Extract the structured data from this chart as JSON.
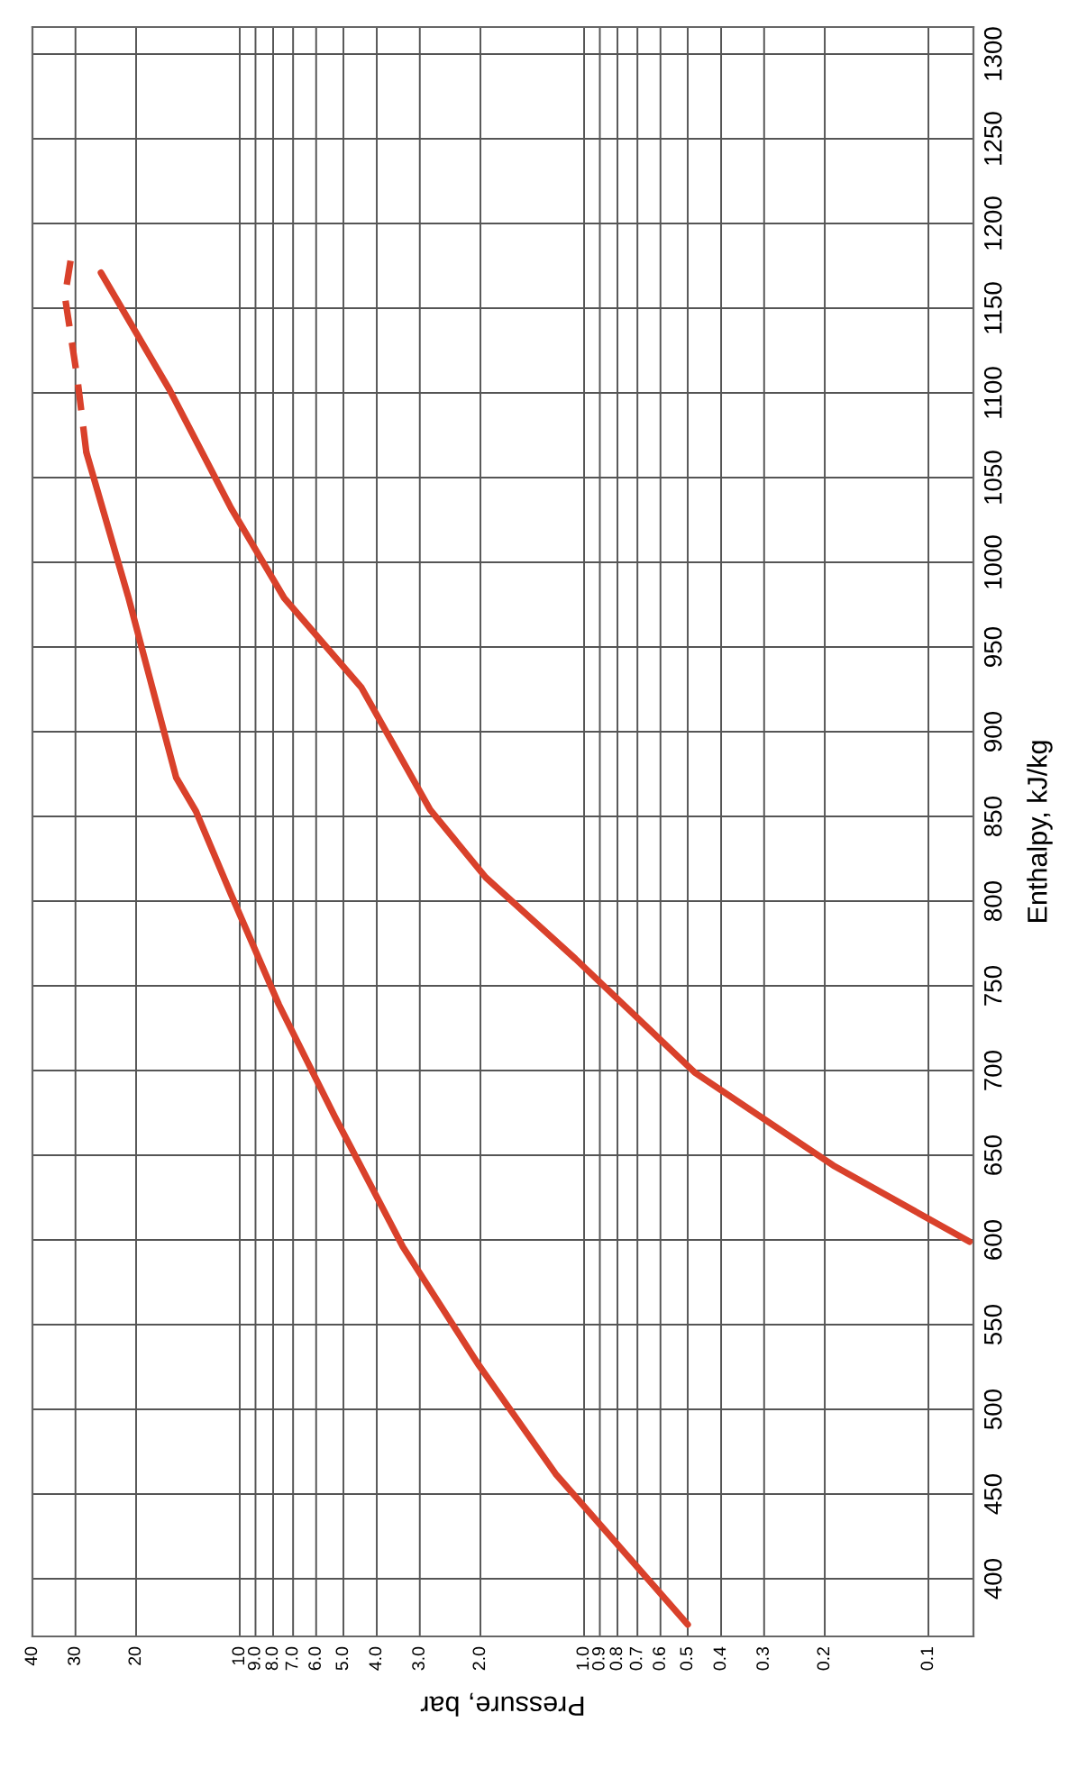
{
  "chart_data": {
    "type": "line",
    "xlabel": "Pressure, bar",
    "ylabel": "Enthalpy, kJ/kg",
    "log": "x",
    "grid": true,
    "marker": "none",
    "xlim": [
      40,
      0.074
    ],
    "ylim": [
      366,
      1316
    ],
    "xticks": [
      40,
      30,
      20,
      10,
      {
        "value": 9,
        "label": "9.0"
      },
      {
        "value": 8,
        "label": "8.0"
      },
      {
        "value": 7,
        "label": "7.0"
      },
      {
        "value": 6,
        "label": "6.0"
      },
      {
        "value": 5,
        "label": "5.0"
      },
      {
        "value": 4,
        "label": "4.0"
      },
      {
        "value": 3,
        "label": "3.0"
      },
      {
        "value": 2,
        "label": "2.0"
      },
      {
        "value": 1,
        "label": "1.0"
      },
      0.9,
      0.8,
      0.7,
      0.6,
      0.5,
      0.4,
      0.3,
      0.2,
      0.1
    ],
    "yticks": [
      400,
      450,
      500,
      550,
      600,
      650,
      700,
      750,
      800,
      850,
      900,
      950,
      1000,
      1050,
      1100,
      1150,
      1200,
      1250,
      1300
    ],
    "series": [
      {
        "color": "#d9412b",
        "line_style": "solid",
        "x": [
          0.5,
          1.21,
          2.02,
          3.36,
          5.3,
          7.7,
          10.6,
          13.4,
          15.3,
          21.1,
          27.9
        ],
        "values": [
          373,
          462,
          526,
          596,
          673,
          739,
          804,
          853,
          873,
          980,
          1065
        ]
      },
      {
        "color": "#d9412b",
        "line_style": "dashed",
        "x": [
          27.9,
          29.6,
          32.2,
          31.0
        ],
        "values": [
          1065,
          1108,
          1157,
          1178
        ]
      },
      {
        "color": "#d9412b",
        "line_style": "solid",
        "x": [
          0.076,
          0.189,
          0.478,
          1.06,
          1.93,
          2.8,
          4.43,
          7.43,
          10.6,
          16.0,
          25.3
        ],
        "values": [
          599,
          644,
          699,
          766,
          814,
          854,
          926,
          979,
          1032,
          1102,
          1171
        ]
      }
    ]
  }
}
